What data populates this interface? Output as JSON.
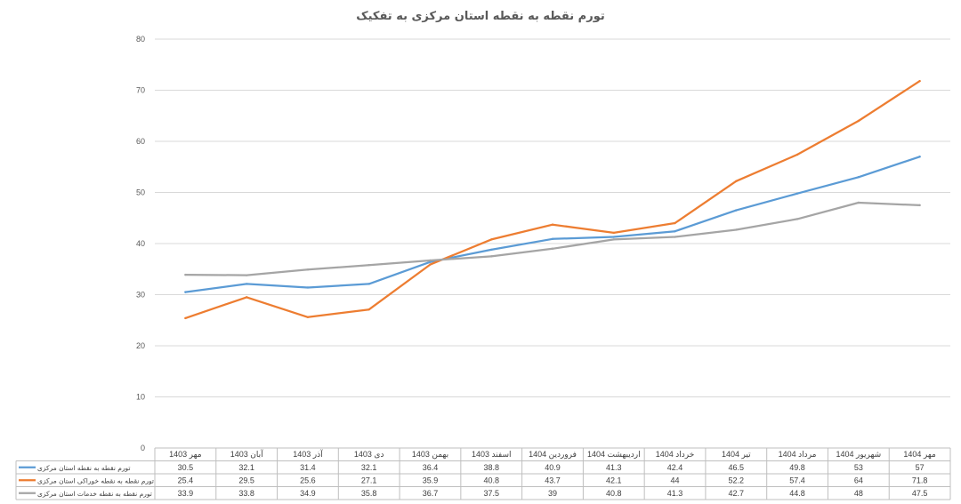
{
  "chart_data": {
    "type": "line",
    "title": "تورم نقطه به نقطه استان مرکزی به تفکیک",
    "xlabel": "",
    "ylabel": "",
    "ylim": [
      0,
      80
    ],
    "yticks": [
      0,
      10,
      20,
      30,
      40,
      50,
      60,
      70,
      80
    ],
    "grid": true,
    "legend": "data-table-left",
    "categories": [
      "مهر 1403",
      "آبان 1403",
      "آذر 1403",
      "دی 1403",
      "بهمن 1403",
      "اسفند 1403",
      "فروردین 1404",
      "اردیبهشت 1404",
      "خرداد 1404",
      "تیر 1404",
      "مرداد 1404",
      "شهریور 1404",
      "مهر 1404"
    ],
    "series": [
      {
        "name": "تورم نقطه به نقطه استان مرکزی",
        "color": "#5b9bd5",
        "values": [
          30.5,
          32.1,
          31.4,
          32.1,
          36.4,
          38.8,
          40.9,
          41.3,
          42.4,
          46.5,
          49.8,
          53,
          57
        ]
      },
      {
        "name": "تورم نقطه به نقطه خوراکی استان مرکزی",
        "color": "#ed7d31",
        "values": [
          25.4,
          29.5,
          25.6,
          27.1,
          35.9,
          40.8,
          43.7,
          42.1,
          44,
          52.2,
          57.4,
          64,
          71.8
        ]
      },
      {
        "name": "تورم نقطه به نقطه خدمات استان مرکزی",
        "color": "#a5a5a5",
        "values": [
          33.9,
          33.8,
          34.9,
          35.8,
          36.7,
          37.5,
          39,
          40.8,
          41.3,
          42.7,
          44.8,
          48,
          47.5
        ]
      }
    ]
  }
}
